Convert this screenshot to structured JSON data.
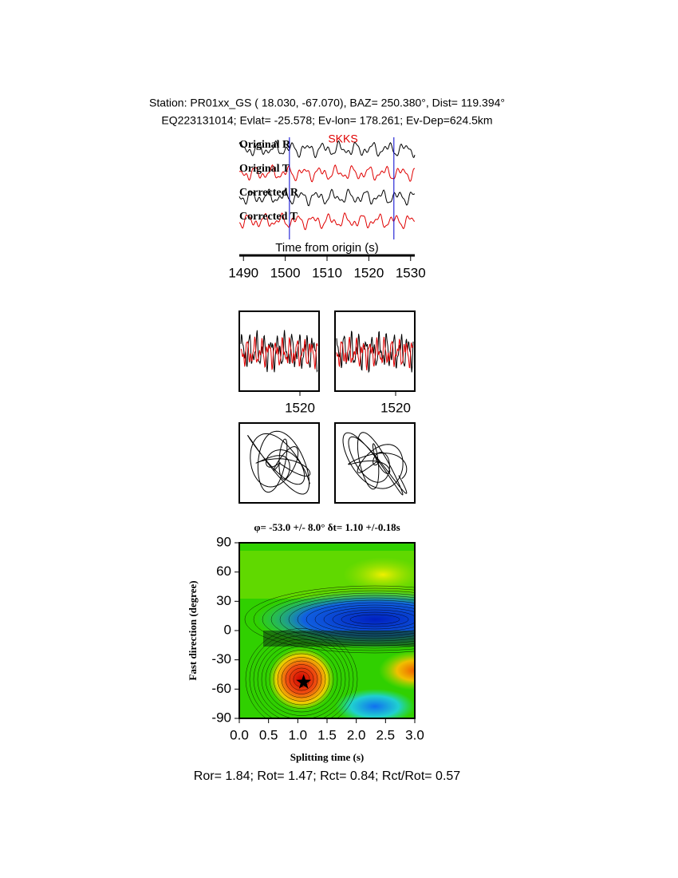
{
  "header": {
    "line1": "Station: PR01xx_GS (  18.030,  -67.070), BAZ=  250.380°, Dist=  119.394°",
    "line2": "EQ223131014; Evlat= -25.578; Ev-lon= 178.261; Ev-Dep=624.5km"
  },
  "traces": {
    "labels": [
      "Original R",
      "Original T",
      "Corrected R",
      "Corrected T"
    ],
    "phase": "SKKS",
    "xlabel": "Time from origin (s)",
    "xlim": [
      1489,
      1531
    ],
    "xticks": [
      1490,
      1500,
      1510,
      1520,
      1530
    ],
    "window": [
      1501,
      1526
    ]
  },
  "windows": {
    "xlim": [
      1501,
      1526
    ],
    "xticks": [
      1520,
      1520
    ]
  },
  "grid_search": {
    "type": "contour",
    "title": "φ= -53.0 +/- 8.0° δt= 1.10 +/-0.18s",
    "xlabel": "Splitting time (s)",
    "ylabel": "Fast direction (degree)",
    "xlim": [
      0,
      3
    ],
    "ylim": [
      -90,
      90
    ],
    "xticks": [
      {
        "value": 0,
        "label": "0.0"
      },
      0.5,
      {
        "value": 1,
        "label": "1.0"
      },
      1.5,
      {
        "value": 2,
        "label": "2.0"
      },
      2.5,
      {
        "value": 3,
        "label": "3.0"
      }
    ],
    "yticks": [
      -90,
      -60,
      -30,
      0,
      30,
      60,
      90
    ],
    "best_fit": {
      "dt": 1.1,
      "phi": -53
    }
  },
  "footer": "Ror= 1.84; Rot= 1.47; Rct= 0.84; Rct/Rot= 0.57"
}
